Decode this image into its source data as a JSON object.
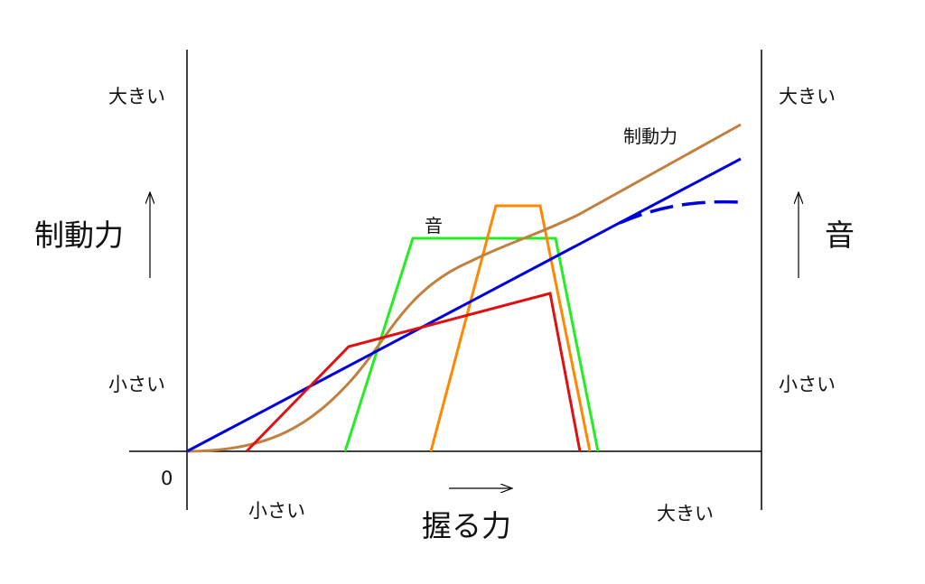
{
  "labels": {
    "left_axis_title": "制動力",
    "right_axis_title": "音",
    "x_axis_title": "握る力",
    "left_large": "大きい",
    "left_small": "小さい",
    "right_large": "大きい",
    "right_small": "小さい",
    "x_small": "小さい",
    "x_large": "大きい",
    "origin": "0",
    "braking_curve_label": "制動力",
    "sound_curve_label": "音"
  },
  "colors": {
    "axis": "#000000",
    "blue_line": "#0000dd",
    "brown_curve": "#c08040",
    "green_trapezoid": "#22ee22",
    "orange_trapezoid": "#ff8800",
    "red_line": "#dd1111"
  },
  "series": [
    {
      "color_key": "blue_line",
      "style": "solid then dashed at high end"
    },
    {
      "color_key": "brown_curve",
      "style": "sigmoid"
    },
    {
      "color_key": "green_trapezoid",
      "style": "trapezoid"
    },
    {
      "color_key": "orange_trapezoid",
      "style": "trapezoid"
    },
    {
      "color_key": "red_line",
      "style": "piecewise"
    }
  ]
}
